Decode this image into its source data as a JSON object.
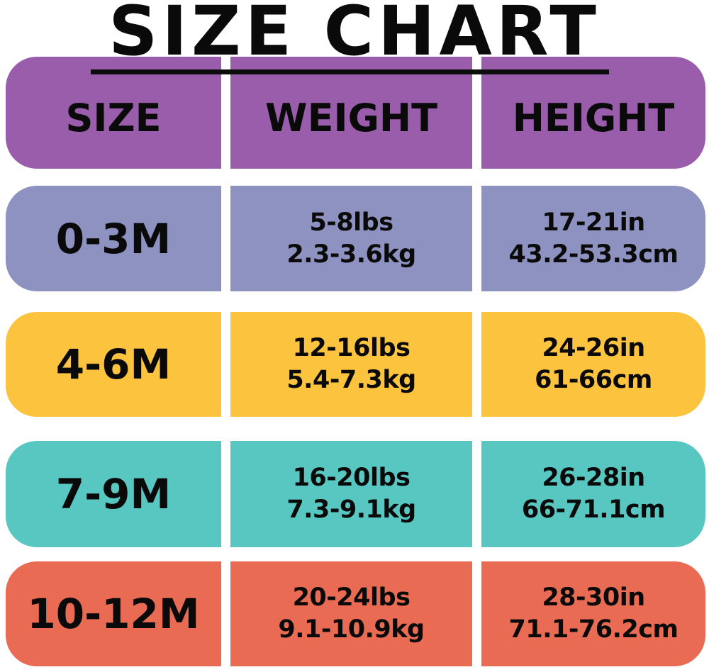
{
  "title": "SIZE CHART",
  "columns": [
    "SIZE",
    "WEIGHT",
    "HEIGHT"
  ],
  "rows": [
    {
      "size": "0-3M",
      "weight": [
        "5-8lbs",
        "2.3-3.6kg"
      ],
      "height": [
        "17-21in",
        "43.2-53.3cm"
      ],
      "color": "#8d92c1"
    },
    {
      "size": "4-6M",
      "weight": [
        "12-16lbs",
        "5.4-7.3kg"
      ],
      "height": [
        "24-26in",
        "61-66cm"
      ],
      "color": "#fcc33e"
    },
    {
      "size": "7-9M",
      "weight": [
        "16-20lbs",
        "7.3-9.1kg"
      ],
      "height": [
        "26-28in",
        "66-71.1cm"
      ],
      "color": "#58c7c2"
    },
    {
      "size": "10-12M",
      "weight": [
        "20-24lbs",
        "9.1-10.9kg"
      ],
      "height": [
        "28-30in",
        "71.1-76.2cm"
      ],
      "color": "#e96b53"
    }
  ],
  "colors": {
    "header": "#995dac",
    "text": "#0a0a0a",
    "background": "#ffffff",
    "underline": "#0d0d0d"
  },
  "chart_data": {
    "type": "table",
    "title": "SIZE CHART",
    "columns": [
      "SIZE",
      "WEIGHT",
      "HEIGHT"
    ],
    "rows": [
      [
        "0-3M",
        "5-8lbs / 2.3-3.6kg",
        "17-21in / 43.2-53.3cm"
      ],
      [
        "4-6M",
        "12-16lbs / 5.4-7.3kg",
        "24-26in / 61-66cm"
      ],
      [
        "7-9M",
        "16-20lbs / 7.3-9.1kg",
        "26-28in / 66-71.1cm"
      ],
      [
        "10-12M",
        "20-24lbs / 9.1-10.9kg",
        "28-30in / 71.1-76.2cm"
      ]
    ],
    "row_colors": [
      "#8d92c1",
      "#fcc33e",
      "#58c7c2",
      "#e96b53"
    ],
    "header_color": "#995dac"
  }
}
